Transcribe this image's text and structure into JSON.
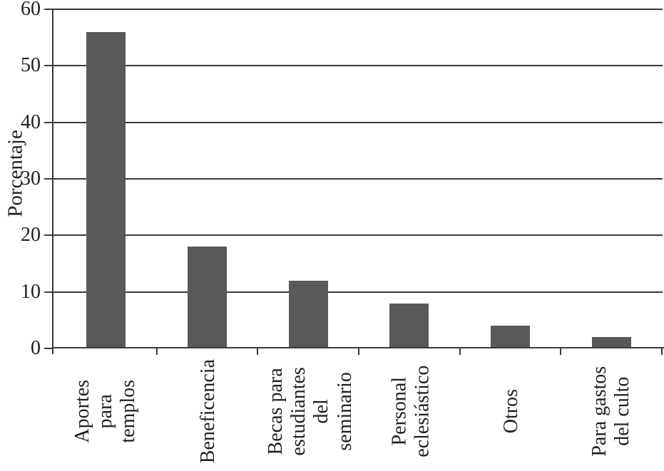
{
  "chart_data": {
    "type": "bar",
    "title": "",
    "xlabel": "",
    "ylabel": "Porcentaje",
    "categories": [
      "Aportes\npara templos",
      "Beneficencia",
      "Becas para\nestudiantes\ndel seminario",
      "Personal\neclesiástico",
      "Otros",
      "Para gastos\ndel culto"
    ],
    "values": [
      56,
      18,
      12,
      8,
      4,
      2
    ],
    "ylim": [
      0,
      60
    ],
    "yticks": [
      0,
      10,
      20,
      30,
      40,
      50,
      60
    ],
    "grid": true,
    "legend": "none",
    "bar_color": "#58595b",
    "axis_color": "#3a3a3c",
    "text_color": "#1f1f20"
  }
}
